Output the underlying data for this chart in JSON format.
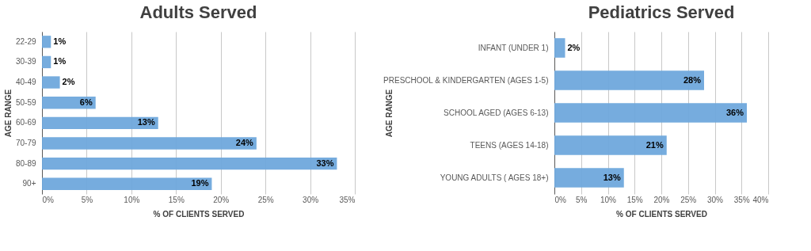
{
  "chart_data": [
    {
      "type": "bar",
      "orientation": "horizontal",
      "title": "Adults Served",
      "xlabel": "% OF CLIENTS SERVED",
      "ylabel": "AGE RANGE",
      "categories": [
        "22-29",
        "30-39",
        "40-49",
        "50-59",
        "60-69",
        "70-79",
        "80-89",
        "90+"
      ],
      "series": [
        {
          "color": "#6fa8dc",
          "values": [
            1,
            1,
            2,
            6,
            13,
            24,
            33,
            19
          ]
        }
      ],
      "value_labels": [
        "1%",
        "1%",
        "2%",
        "6%",
        "13%",
        "24%",
        "33%",
        "19%"
      ],
      "xlim": [
        0,
        35
      ],
      "xticks": [
        {
          "value": 0,
          "label": "0%"
        },
        {
          "value": 5,
          "label": "5%"
        },
        {
          "value": 10,
          "label": "10%"
        },
        {
          "value": 15,
          "label": "15%"
        },
        {
          "value": 20,
          "label": "20%"
        },
        {
          "value": 25,
          "label": "25%"
        },
        {
          "value": 30,
          "label": "30%"
        },
        {
          "value": 35,
          "label": "35%"
        }
      ],
      "grid": "x"
    },
    {
      "type": "bar",
      "orientation": "horizontal",
      "title": "Pediatrics Served",
      "xlabel": "% OF CLIENTS SERVED",
      "ylabel": "AGE RANGE",
      "categories": [
        "INFANT (UNDER 1)",
        "PRESCHOOL & KINDERGARTEN (AGES 1-5)",
        "SCHOOL AGED (AGES 6-13)",
        "TEENS (AGES 14-18)",
        "YOUNG ADULTS ( AGES 18+)"
      ],
      "series": [
        {
          "color": "#6fa8dc",
          "values": [
            2,
            28,
            36,
            21,
            13
          ]
        }
      ],
      "value_labels": [
        "2%",
        "28%",
        "36%",
        "21%",
        "13%"
      ],
      "xlim": [
        0,
        40
      ],
      "xticks": [
        {
          "value": 0,
          "label": "0%"
        },
        {
          "value": 5,
          "label": "5%"
        },
        {
          "value": 10,
          "label": "10%"
        },
        {
          "value": 15,
          "label": "15%"
        },
        {
          "value": 20,
          "label": "20%"
        },
        {
          "value": 25,
          "label": "25%"
        },
        {
          "value": 30,
          "label": "30%"
        },
        {
          "value": 35,
          "label": "35%"
        },
        {
          "value": 40,
          "label": "40%"
        }
      ],
      "grid": "x"
    }
  ]
}
